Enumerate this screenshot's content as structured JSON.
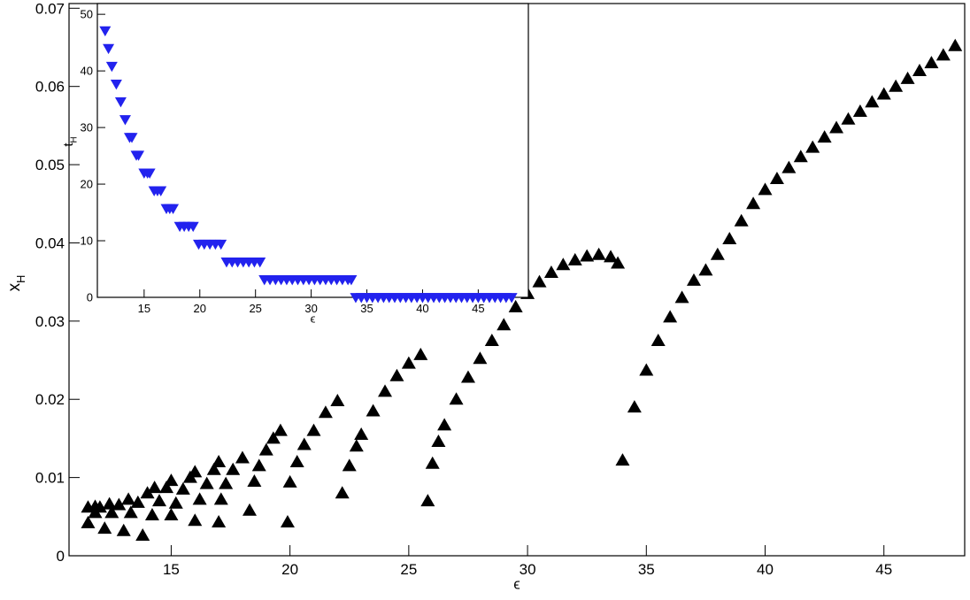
{
  "chart_data": [
    {
      "type": "scatter",
      "marker": "triangle-up",
      "color": "#000000",
      "x_label": "ϵ",
      "y_label": {
        "text": "x",
        "subscript": "H"
      },
      "xlim": [
        10.7,
        48.4
      ],
      "ylim": [
        0,
        0.0706
      ],
      "xticks": [
        15,
        20,
        25,
        30,
        35,
        40,
        45
      ],
      "yticks": [
        0,
        0.01,
        0.02,
        0.03,
        0.04,
        0.05,
        0.06,
        0.07
      ],
      "x": [
        34,
        34.5,
        35,
        35.5,
        36,
        36.5,
        37,
        37.5,
        38,
        38.5,
        39,
        39.5,
        40,
        40.5,
        41,
        41.5,
        42,
        42.5,
        43,
        43.5,
        44,
        44.5,
        45,
        45.5,
        46,
        46.5,
        47,
        47.5,
        48,
        25.8,
        26,
        26.25,
        26.5,
        27,
        27.5,
        28,
        28.5,
        29,
        29.5,
        30,
        30.5,
        31,
        31.5,
        32,
        32.5,
        33,
        33.5,
        33.8,
        22.2,
        22.5,
        22.8,
        23,
        23.5,
        24,
        24.5,
        25,
        25.5,
        19.9,
        20,
        20.3,
        20.6,
        21,
        21.5,
        22,
        18.3,
        18.5,
        18.7,
        19,
        19.3,
        19.6,
        17,
        17.1,
        17.3,
        17.6,
        18,
        16,
        16.2,
        16.5,
        16.8,
        17,
        15,
        15.2,
        15.5,
        15.8,
        16,
        13.8,
        14.2,
        14.5,
        14.8,
        15,
        13,
        13.3,
        13.6,
        14,
        14.3,
        12.2,
        12.5,
        12.8,
        13.2,
        11.5,
        11.8,
        12,
        12.4,
        11.5,
        11.8
      ],
      "y": [
        0.0122,
        0.019,
        0.0237,
        0.0275,
        0.0305,
        0.033,
        0.0352,
        0.0365,
        0.0385,
        0.0405,
        0.0428,
        0.045,
        0.0468,
        0.0482,
        0.0496,
        0.051,
        0.0522,
        0.0535,
        0.0547,
        0.0558,
        0.0568,
        0.058,
        0.059,
        0.06,
        0.061,
        0.062,
        0.063,
        0.064,
        0.0652,
        0.007,
        0.0118,
        0.0146,
        0.0167,
        0.02,
        0.0228,
        0.0252,
        0.0275,
        0.0295,
        0.0318,
        0.0335,
        0.035,
        0.0362,
        0.0372,
        0.0378,
        0.0383,
        0.0385,
        0.0382,
        0.0374,
        0.008,
        0.0115,
        0.014,
        0.0155,
        0.0185,
        0.021,
        0.023,
        0.0246,
        0.0257,
        0.0043,
        0.0094,
        0.012,
        0.0142,
        0.016,
        0.0183,
        0.0198,
        0.0058,
        0.0095,
        0.0115,
        0.0135,
        0.015,
        0.016,
        0.0043,
        0.0072,
        0.0092,
        0.011,
        0.0125,
        0.0045,
        0.0072,
        0.0092,
        0.011,
        0.012,
        0.0052,
        0.0067,
        0.0085,
        0.01,
        0.0107,
        0.0026,
        0.0052,
        0.007,
        0.0087,
        0.0096,
        0.0032,
        0.0055,
        0.0068,
        0.008,
        0.0087,
        0.0035,
        0.0055,
        0.0065,
        0.0072,
        0.0042,
        0.0055,
        0.0062,
        0.0066,
        0.0062,
        0.0063
      ]
    },
    {
      "type": "scatter",
      "marker": "triangle-down",
      "color": "#2222ee",
      "x_label": "ϵ",
      "y_label": {
        "text": "t",
        "subscript": "H"
      },
      "xlim": [
        10.8,
        49.5
      ],
      "ylim": [
        0,
        51.9
      ],
      "xticks": [
        15,
        20,
        25,
        30,
        35,
        40,
        45
      ],
      "yticks": [
        0,
        10,
        20,
        30,
        40,
        50
      ],
      "x": [
        11.5,
        11.8,
        12.1,
        12.5,
        12.9,
        13.3,
        13.7,
        13.9,
        14.3,
        14.5,
        15,
        15.3,
        15.5,
        15.9,
        16.2,
        16.5,
        17,
        17.3,
        17.6,
        18.2,
        18.6,
        19,
        19.4,
        19.9,
        20.4,
        20.9,
        21.4,
        21.9,
        22.4,
        22.9,
        23.4,
        23.9,
        24.4,
        24.9,
        25.4,
        25.8,
        26.3,
        26.8,
        27.3,
        27.8,
        28.3,
        28.8,
        29.3,
        29.8,
        30.3,
        30.8,
        31.3,
        31.8,
        32.3,
        32.8,
        33.3,
        33.6,
        34,
        34.5,
        35,
        35.5,
        36,
        36.5,
        37,
        37.5,
        38,
        38.5,
        39,
        39.5,
        40,
        40.5,
        41,
        41.5,
        42,
        42.5,
        43,
        43.5,
        44,
        44.5,
        45,
        45.5,
        46,
        46.5,
        47,
        47.5,
        48
      ],
      "y": [
        47.12,
        43.98,
        40.84,
        37.7,
        34.56,
        31.42,
        28.27,
        28.27,
        25.13,
        25.13,
        21.99,
        21.99,
        21.99,
        18.85,
        18.85,
        18.85,
        15.71,
        15.71,
        15.71,
        12.57,
        12.57,
        12.57,
        12.57,
        9.42,
        9.42,
        9.42,
        9.42,
        9.42,
        6.28,
        6.28,
        6.28,
        6.28,
        6.28,
        6.28,
        6.28,
        3.14,
        3.14,
        3.14,
        3.14,
        3.14,
        3.14,
        3.14,
        3.14,
        3.14,
        3.14,
        3.14,
        3.14,
        3.14,
        3.14,
        3.14,
        3.14,
        3.14,
        0,
        0,
        0,
        0,
        0,
        0,
        0,
        0,
        0,
        0,
        0,
        0,
        0,
        0,
        0,
        0,
        0,
        0,
        0,
        0,
        0,
        0,
        0,
        0,
        0,
        0,
        0,
        0,
        0
      ]
    }
  ]
}
